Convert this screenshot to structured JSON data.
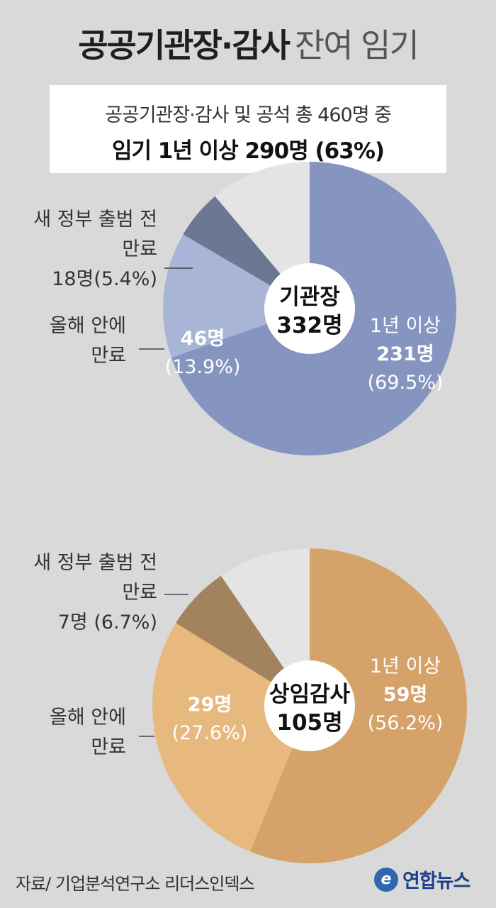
{
  "title_bold": "공공기관장·감사",
  "title_light": "잔여 임기",
  "summary": {
    "line1": "공공기관장·감사 및 공석 총 460명 중",
    "line2": "임기 1년 이상 290명 (63%)"
  },
  "chart_data": [
    {
      "type": "pie",
      "center_label": [
        "기관장",
        "332명"
      ],
      "total": 332,
      "slices": [
        {
          "key": "over1y",
          "label_lines": [
            "1년 이상",
            "231명",
            "(69.5%)"
          ],
          "value": 231,
          "percent": 69.5,
          "color": "#8595c0"
        },
        {
          "key": "this_year",
          "label_lines": [
            "46명",
            "(13.9%)"
          ],
          "value": 46,
          "percent": 13.9,
          "color": "#a9b5d6"
        },
        {
          "key": "before_gov",
          "label_lines": [
            "새 정부 출범 전",
            "만료",
            "18명(5.4%)"
          ],
          "value": 18,
          "percent": 5.4,
          "color": "#6b7793"
        },
        {
          "key": "other",
          "label_lines": [],
          "value": 37,
          "percent": 11.2,
          "color": "#e4e4e4"
        }
      ],
      "side_label_this_year": [
        "올해 안에",
        "만료"
      ]
    },
    {
      "type": "pie",
      "center_label": [
        "상임감사",
        "105명"
      ],
      "total": 105,
      "slices": [
        {
          "key": "over1y",
          "label_lines": [
            "1년 이상",
            "59명",
            "(56.2%)"
          ],
          "value": 59,
          "percent": 56.2,
          "color": "#d5a26a"
        },
        {
          "key": "this_year",
          "label_lines": [
            "29명",
            "(27.6%)"
          ],
          "value": 29,
          "percent": 27.6,
          "color": "#e8b97f"
        },
        {
          "key": "before_gov",
          "label_lines": [
            "새 정부 출범 전",
            "만료",
            "7명 (6.7%)"
          ],
          "value": 7,
          "percent": 6.7,
          "color": "#a3835d"
        },
        {
          "key": "other",
          "label_lines": [],
          "value": 10,
          "percent": 9.5,
          "color": "#e4e4e4"
        }
      ],
      "side_label_this_year": [
        "올해 안에",
        "만료"
      ]
    }
  ],
  "footer": {
    "source": "자료/ 기업분석연구소 리더스인덱스",
    "logo_text": "연합뉴스",
    "logo_mark": "e"
  }
}
